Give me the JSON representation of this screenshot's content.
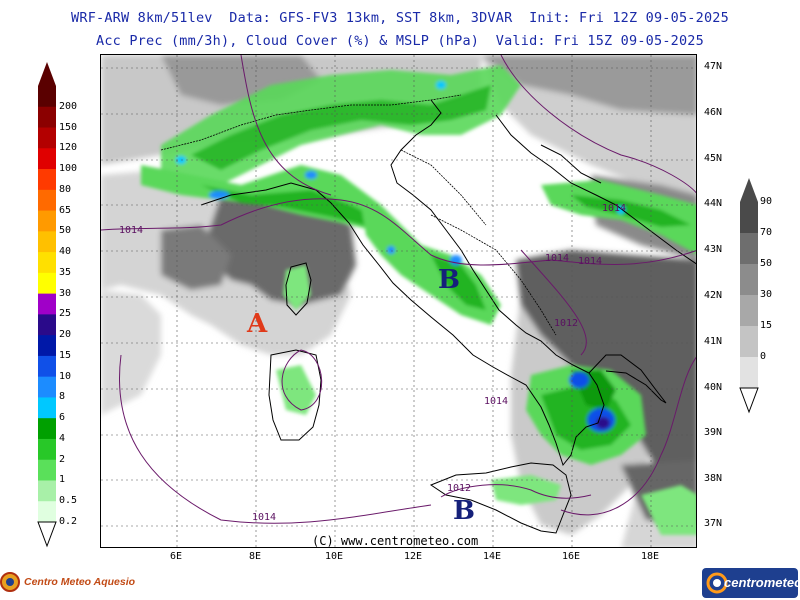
{
  "header": {
    "title_line1": "WRF-ARW 8km/51lev  Data: GFS-FV3 13km, SST 8km, 3DVAR  Init: Fri 12Z 09-05-2025",
    "title_line2": "Acc Prec (mm/3h), Cloud Cover (%) & MSLP (hPa)  Valid: Fri 15Z 09-05-2025"
  },
  "precip_scale": {
    "labels": [
      "200",
      "150",
      "120",
      "100",
      "80",
      "65",
      "50",
      "40",
      "35",
      "30",
      "25",
      "20",
      "15",
      "10",
      "8",
      "6",
      "4",
      "2",
      "1",
      "0.5",
      "0.2"
    ],
    "colors": [
      "#5a0000",
      "#8b0000",
      "#b30000",
      "#e00000",
      "#ff3a00",
      "#ff6a00",
      "#ff9a00",
      "#ffc000",
      "#ffe000",
      "#ffff00",
      "#a000c8",
      "#2a0a8a",
      "#0018a8",
      "#1050e8",
      "#1c8cff",
      "#00c8ff",
      "#00a000",
      "#28c828",
      "#5ae05a",
      "#a8f0a8",
      "#e0ffe0"
    ]
  },
  "cloud_scale": {
    "labels": [
      "90",
      "70",
      "50",
      "30",
      "15",
      "0"
    ],
    "colors": [
      "#4a4a4a",
      "#6e6e6e",
      "#8c8c8c",
      "#a8a8a8",
      "#c4c4c4",
      "#e2e2e2"
    ]
  },
  "axes": {
    "lon_labels": [
      "6E",
      "8E",
      "10E",
      "12E",
      "14E",
      "16E",
      "18E"
    ],
    "lat_labels": [
      "47N",
      "46N",
      "45N",
      "44N",
      "43N",
      "42N",
      "41N",
      "40N",
      "39N",
      "38N",
      "37N"
    ]
  },
  "pressure_centers": [
    {
      "letter": "A",
      "color": "#e03a1a"
    },
    {
      "letter": "B",
      "color": "#15207a"
    },
    {
      "letter": "B",
      "color": "#15207a"
    }
  ],
  "isobars": [
    "1014",
    "1014",
    "1014",
    "1014",
    "1014",
    "1014",
    "1012",
    "1012"
  ],
  "copyright": "(C) www.centrometeo.com",
  "logos": {
    "left": "Centro Meteo Aquesio",
    "right": "centrometeo"
  }
}
